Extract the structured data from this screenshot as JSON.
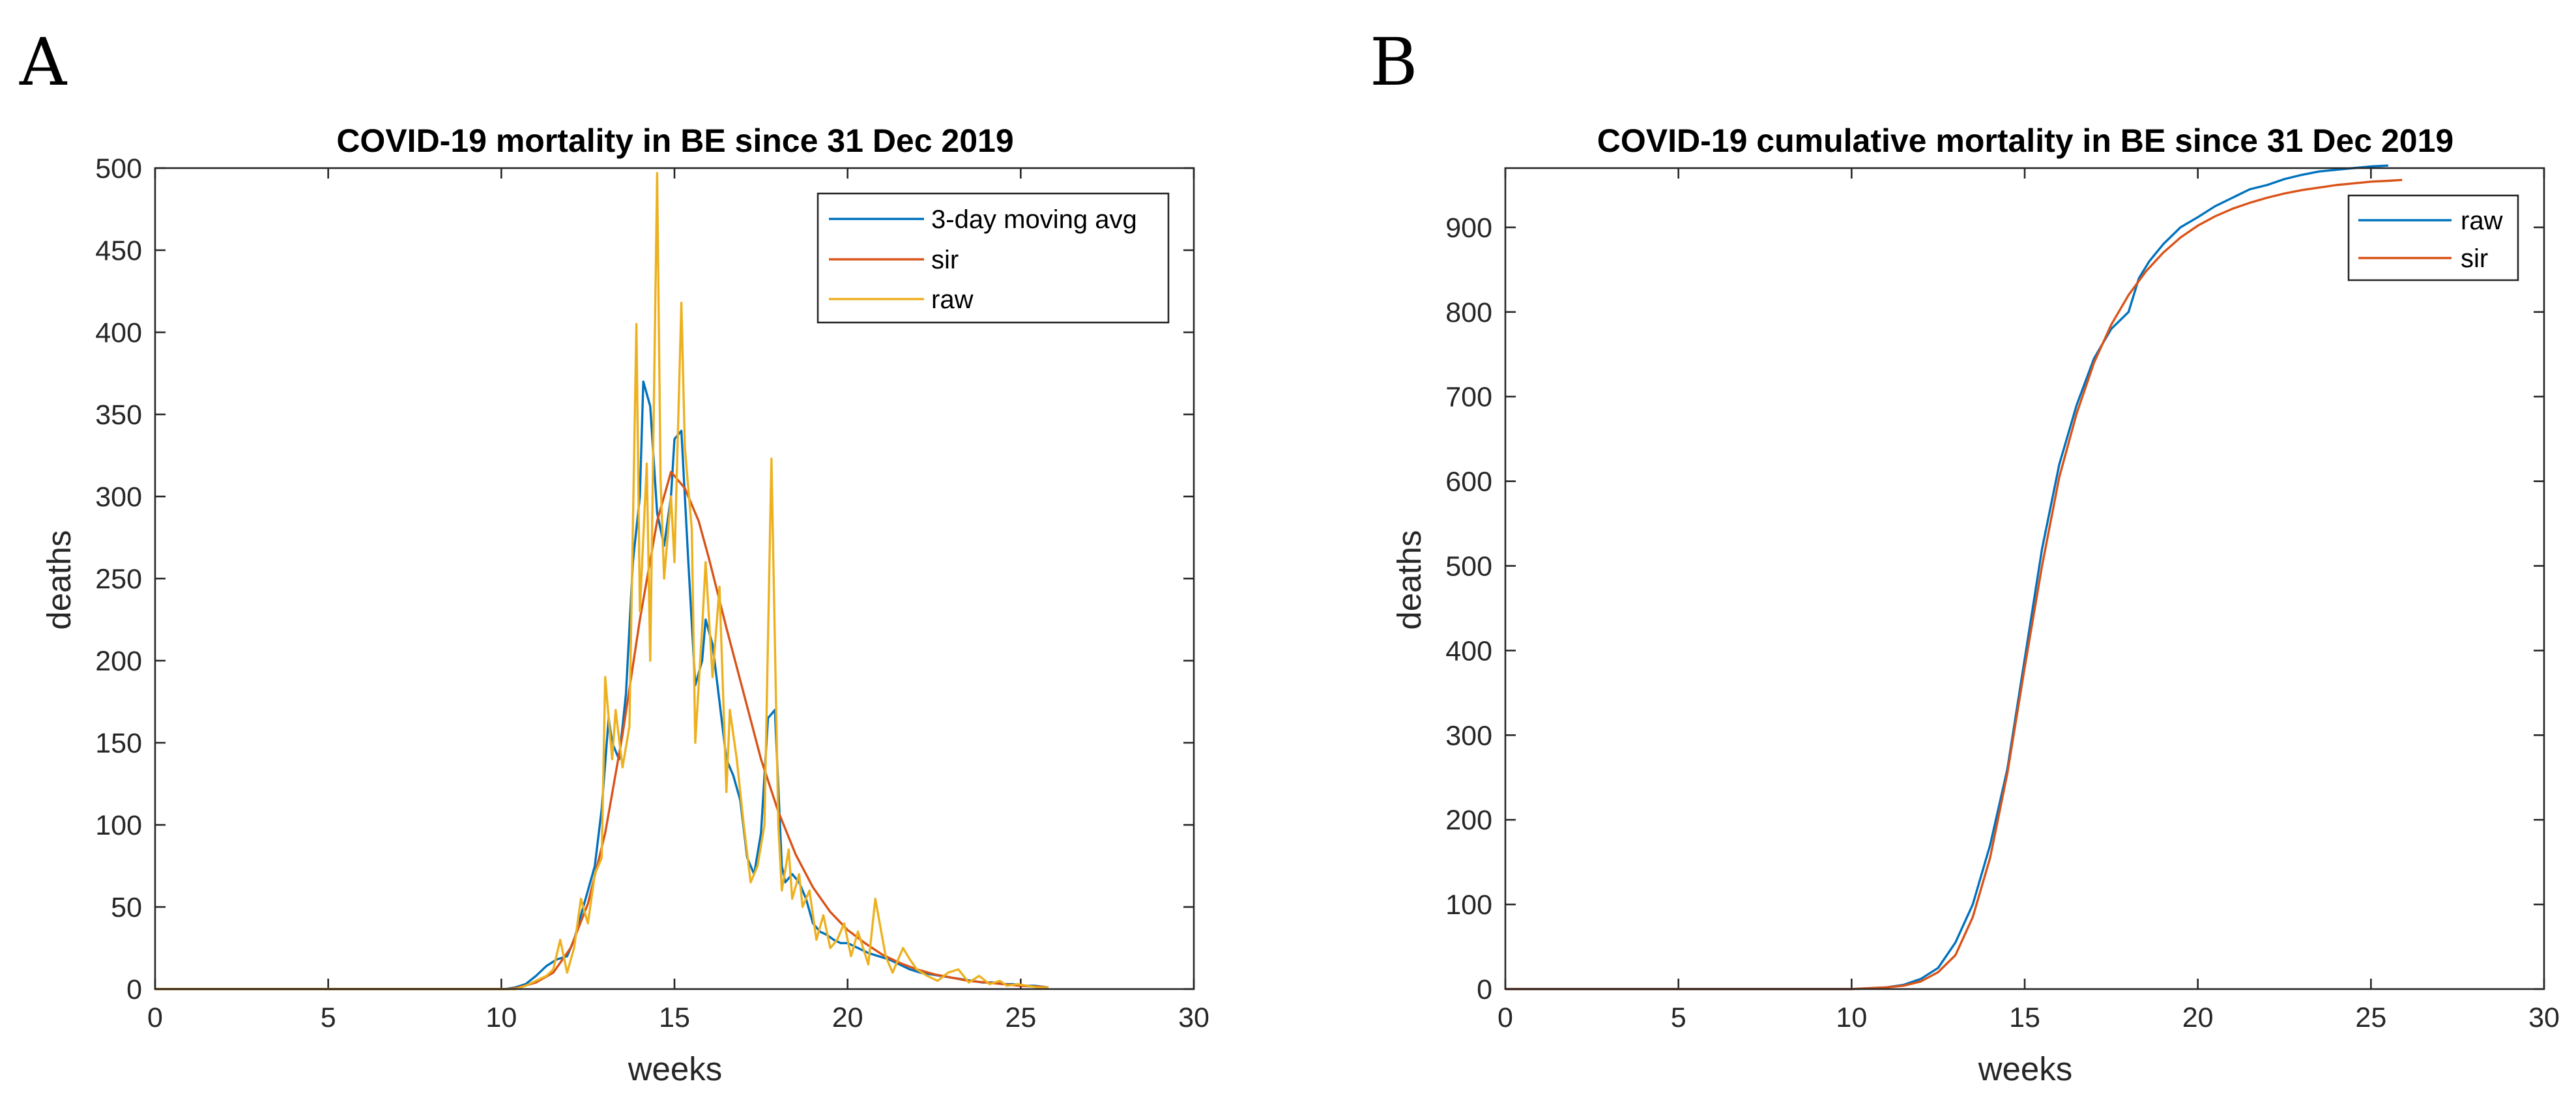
{
  "colors": {
    "blue": "#0072BD",
    "orange": "#D95319",
    "yellow": "#EDB120"
  },
  "chart_data": [
    {
      "panel": "A",
      "type": "line",
      "title": "COVID-19 mortality in BE since 31 Dec 2019",
      "xlabel": "weeks",
      "ylabel": "deaths",
      "xlim": [
        0,
        30
      ],
      "ylim": [
        0,
        500
      ],
      "xticks": [
        "0",
        "5",
        "10",
        "15",
        "20",
        "25",
        "30"
      ],
      "yticks": [
        "0",
        "50",
        "100",
        "150",
        "200",
        "250",
        "300",
        "350",
        "400",
        "450",
        "500"
      ],
      "legend_position": "top-right",
      "grid": false,
      "series": [
        {
          "name": "3-day moving avg",
          "color": "#0072BD",
          "x": [
            0,
            10.1,
            10.4,
            10.7,
            11.0,
            11.3,
            11.6,
            11.9,
            12.1,
            12.3,
            12.5,
            12.7,
            12.9,
            13.1,
            13.2,
            13.4,
            13.6,
            13.8,
            14.0,
            14.1,
            14.3,
            14.5,
            14.7,
            14.9,
            15.0,
            15.2,
            15.4,
            15.6,
            15.8,
            15.9,
            16.1,
            16.3,
            16.5,
            16.7,
            16.9,
            17.1,
            17.3,
            17.5,
            17.7,
            17.9,
            18.1,
            18.2,
            18.4,
            18.6,
            18.8,
            19.0,
            19.2,
            19.4,
            19.6,
            19.8,
            20.0,
            20.3,
            20.6,
            20.9,
            21.2,
            21.5,
            21.8,
            22.1,
            22.4,
            22.7,
            23.0,
            23.3,
            23.6,
            23.9,
            24.2,
            24.5,
            24.8,
            25.1,
            25.4,
            25.8
          ],
          "values": [
            0,
            0,
            1,
            3,
            8,
            14,
            18,
            20,
            30,
            45,
            60,
            75,
            110,
            165,
            150,
            140,
            180,
            260,
            300,
            370,
            355,
            290,
            270,
            300,
            335,
            340,
            260,
            185,
            200,
            225,
            210,
            175,
            140,
            130,
            115,
            80,
            70,
            95,
            165,
            170,
            75,
            65,
            70,
            65,
            55,
            40,
            35,
            33,
            30,
            28,
            28,
            25,
            22,
            20,
            18,
            15,
            12,
            10,
            9,
            8,
            7,
            6,
            5,
            4,
            4,
            3,
            3,
            2,
            2,
            1
          ]
        },
        {
          "name": "sir",
          "color": "#D95319",
          "x": [
            0,
            10.2,
            10.5,
            11.0,
            11.5,
            12.0,
            12.5,
            13.0,
            13.5,
            14.0,
            14.5,
            14.9,
            15.3,
            15.7,
            16.0,
            16.5,
            17.0,
            17.5,
            18.0,
            18.5,
            19.0,
            19.5,
            20.0,
            20.5,
            21.0,
            21.5,
            22.0,
            22.5,
            23.0,
            23.5,
            24.0,
            24.5,
            25.0,
            25.5,
            25.8
          ],
          "values": [
            0,
            0,
            1,
            4,
            10,
            25,
            52,
            95,
            155,
            225,
            285,
            315,
            305,
            285,
            262,
            220,
            180,
            140,
            108,
            82,
            62,
            47,
            36,
            28,
            21,
            16,
            12,
            9,
            7,
            5,
            4,
            3,
            2,
            1.5,
            1
          ]
        },
        {
          "name": "raw",
          "color": "#EDB120",
          "x": [
            0,
            10.1,
            10.4,
            10.7,
            11.0,
            11.3,
            11.5,
            11.7,
            11.9,
            12.1,
            12.3,
            12.5,
            12.7,
            12.9,
            13.0,
            13.2,
            13.3,
            13.5,
            13.7,
            13.9,
            14.0,
            14.2,
            14.3,
            14.5,
            14.6,
            14.7,
            14.9,
            15.0,
            15.2,
            15.3,
            15.5,
            15.6,
            15.8,
            15.9,
            16.1,
            16.3,
            16.5,
            16.6,
            16.8,
            17.0,
            17.2,
            17.4,
            17.6,
            17.8,
            18.0,
            18.1,
            18.3,
            18.4,
            18.6,
            18.7,
            18.9,
            19.1,
            19.3,
            19.5,
            19.7,
            19.9,
            20.1,
            20.3,
            20.6,
            20.8,
            21.1,
            21.3,
            21.6,
            21.8,
            22.0,
            22.3,
            22.6,
            22.9,
            23.2,
            23.5,
            23.8,
            24.1,
            24.4,
            24.6,
            24.9,
            25.2,
            25.5,
            25.8
          ],
          "values": [
            0,
            0,
            0,
            2,
            5,
            8,
            12,
            30,
            10,
            25,
            55,
            40,
            70,
            80,
            190,
            140,
            170,
            135,
            160,
            405,
            230,
            320,
            200,
            497,
            310,
            250,
            300,
            260,
            418,
            330,
            280,
            150,
            220,
            260,
            190,
            245,
            120,
            170,
            140,
            100,
            65,
            75,
            100,
            323,
            100,
            60,
            85,
            55,
            70,
            50,
            60,
            30,
            45,
            25,
            30,
            40,
            20,
            35,
            15,
            55,
            20,
            10,
            25,
            18,
            12,
            8,
            5,
            10,
            12,
            4,
            8,
            3,
            5,
            2,
            3,
            2,
            1,
            1
          ]
        }
      ]
    },
    {
      "panel": "B",
      "type": "line",
      "title": "COVID-19 cumulative mortality in BE since 31 Dec 2019",
      "xlabel": "weeks",
      "ylabel": "deaths",
      "xlim": [
        0,
        30
      ],
      "ylim": [
        0,
        970
      ],
      "xticks": [
        "0",
        "5",
        "10",
        "15",
        "20",
        "25",
        "30"
      ],
      "yticks": [
        "0",
        "100",
        "200",
        "300",
        "400",
        "500",
        "600",
        "700",
        "800",
        "900"
      ],
      "legend_position": "top-right",
      "grid": false,
      "series": [
        {
          "name": "raw",
          "color": "#0072BD",
          "x": [
            0,
            10.0,
            11.0,
            11.5,
            12.0,
            12.5,
            13.0,
            13.5,
            14.0,
            14.5,
            15.0,
            15.5,
            16.0,
            16.5,
            17.0,
            17.5,
            18.0,
            18.3,
            18.6,
            19.0,
            19.5,
            20.0,
            20.5,
            21.0,
            21.5,
            22.0,
            22.5,
            23.0,
            23.5,
            24.0,
            24.5,
            25.0,
            25.5
          ],
          "values": [
            0,
            0,
            2,
            5,
            12,
            25,
            55,
            100,
            170,
            260,
            390,
            520,
            620,
            690,
            745,
            780,
            800,
            840,
            860,
            880,
            900,
            912,
            925,
            935,
            945,
            950,
            957,
            962,
            966,
            968,
            970,
            972,
            973
          ]
        },
        {
          "name": "sir",
          "color": "#D95319",
          "x": [
            0,
            10.0,
            11.0,
            11.5,
            12.0,
            12.5,
            13.0,
            13.5,
            14.0,
            14.5,
            15.0,
            15.5,
            16.0,
            16.5,
            17.0,
            17.5,
            18.0,
            18.5,
            19.0,
            19.5,
            20.0,
            20.5,
            21.0,
            21.5,
            22.0,
            22.5,
            23.0,
            23.5,
            24.0,
            24.5,
            25.0,
            25.5,
            25.9
          ],
          "values": [
            0,
            0,
            2,
            4,
            9,
            20,
            40,
            85,
            155,
            255,
            380,
            500,
            605,
            680,
            740,
            785,
            820,
            848,
            870,
            888,
            902,
            913,
            922,
            929,
            935,
            940,
            944,
            947,
            950,
            952,
            954,
            955,
            956
          ]
        }
      ]
    }
  ]
}
